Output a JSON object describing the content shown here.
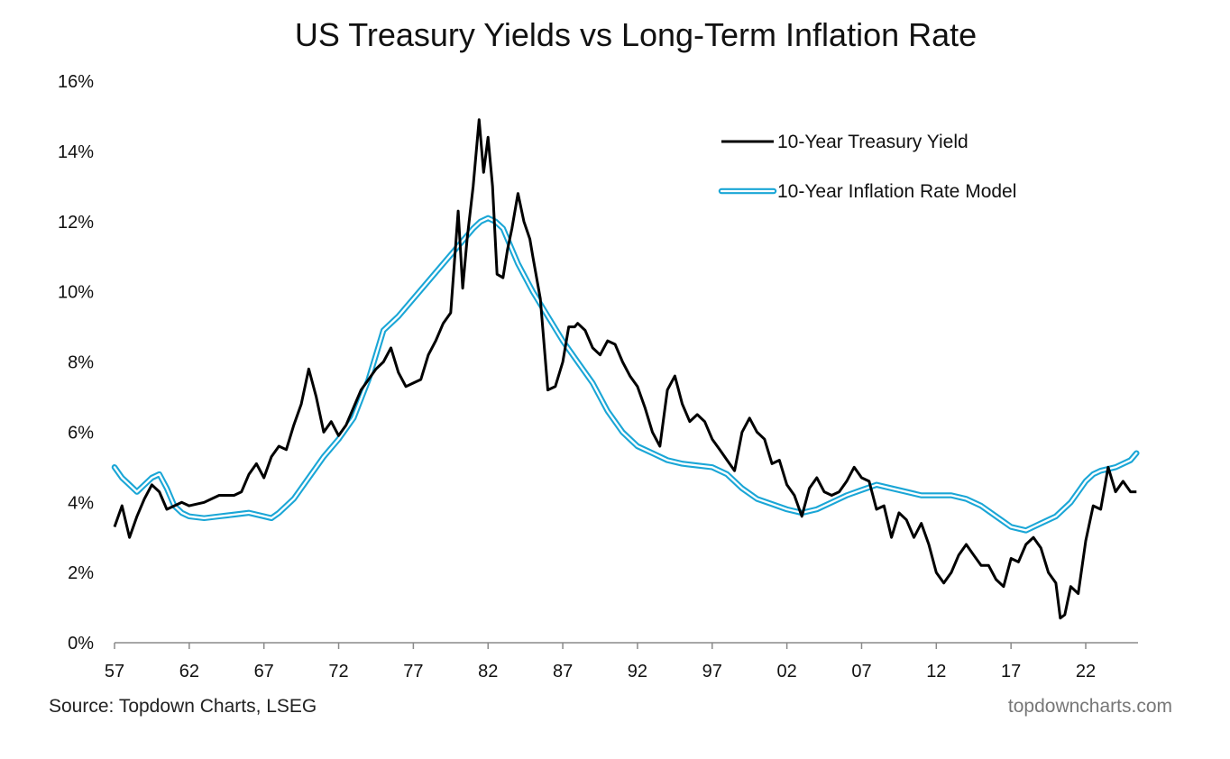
{
  "source_note": "Source: Topdown Charts, LSEG",
  "brand": "topdowncharts.com",
  "chart_data": {
    "type": "line",
    "title": "US Treasury Yields vs Long-Term Inflation Rate",
    "xlabel": "",
    "ylabel": "",
    "xlim": [
      1957,
      2025.5
    ],
    "ylim": [
      0,
      16
    ],
    "grid": false,
    "legend_position": "top-right",
    "x_ticks": [
      1957,
      1962,
      1967,
      1972,
      1977,
      1982,
      1987,
      1992,
      1997,
      2002,
      2007,
      2012,
      2017,
      2022
    ],
    "x_tick_labels": [
      "57",
      "62",
      "67",
      "72",
      "77",
      "82",
      "87",
      "92",
      "97",
      "02",
      "07",
      "12",
      "17",
      "22"
    ],
    "y_ticks": [
      0,
      2,
      4,
      6,
      8,
      10,
      12,
      14,
      16
    ],
    "y_tick_labels": [
      "0%",
      "2%",
      "4%",
      "6%",
      "8%",
      "10%",
      "12%",
      "14%",
      "16%"
    ],
    "series": [
      {
        "name": "10-Year Treasury Yield",
        "color": "#000000",
        "style": "solid",
        "x": [
          1957.0,
          1957.5,
          1958.0,
          1958.5,
          1959.0,
          1959.5,
          1960.0,
          1960.5,
          1961.0,
          1961.5,
          1962.0,
          1962.5,
          1963.0,
          1963.5,
          1964.0,
          1964.5,
          1965.0,
          1965.5,
          1966.0,
          1966.5,
          1967.0,
          1967.5,
          1968.0,
          1968.5,
          1969.0,
          1969.5,
          1970.0,
          1970.5,
          1971.0,
          1971.5,
          1972.0,
          1972.5,
          1973.0,
          1973.5,
          1974.0,
          1974.5,
          1975.0,
          1975.5,
          1976.0,
          1976.5,
          1977.0,
          1977.5,
          1978.0,
          1978.5,
          1979.0,
          1979.5,
          1980.0,
          1980.3,
          1980.6,
          1981.0,
          1981.4,
          1981.7,
          1982.0,
          1982.3,
          1982.6,
          1983.0,
          1983.3,
          1983.6,
          1984.0,
          1984.4,
          1984.8,
          1985.0,
          1985.5,
          1986.0,
          1986.5,
          1987.0,
          1987.4,
          1987.8,
          1988.0,
          1988.5,
          1989.0,
          1989.5,
          1990.0,
          1990.5,
          1991.0,
          1991.5,
          1992.0,
          1992.5,
          1993.0,
          1993.5,
          1994.0,
          1994.5,
          1995.0,
          1995.5,
          1996.0,
          1996.5,
          1997.0,
          1997.5,
          1998.0,
          1998.5,
          1999.0,
          1999.5,
          2000.0,
          2000.5,
          2001.0,
          2001.5,
          2002.0,
          2002.5,
          2003.0,
          2003.5,
          2004.0,
          2004.5,
          2005.0,
          2005.5,
          2006.0,
          2006.5,
          2007.0,
          2007.5,
          2008.0,
          2008.5,
          2009.0,
          2009.5,
          2010.0,
          2010.5,
          2011.0,
          2011.5,
          2012.0,
          2012.5,
          2013.0,
          2013.5,
          2014.0,
          2014.5,
          2015.0,
          2015.5,
          2016.0,
          2016.5,
          2017.0,
          2017.5,
          2018.0,
          2018.5,
          2019.0,
          2019.5,
          2020.0,
          2020.3,
          2020.6,
          2021.0,
          2021.5,
          2022.0,
          2022.5,
          2023.0,
          2023.5,
          2024.0,
          2024.5,
          2025.0,
          2025.4
        ],
        "y": [
          3.3,
          3.9,
          3.0,
          3.6,
          4.1,
          4.5,
          4.3,
          3.8,
          3.9,
          4.0,
          3.9,
          3.95,
          4.0,
          4.1,
          4.2,
          4.2,
          4.2,
          4.3,
          4.8,
          5.1,
          4.7,
          5.3,
          5.6,
          5.5,
          6.2,
          6.8,
          7.8,
          7.0,
          6.0,
          6.3,
          5.9,
          6.2,
          6.7,
          7.2,
          7.5,
          7.8,
          8.0,
          8.4,
          7.7,
          7.3,
          7.4,
          7.5,
          8.2,
          8.6,
          9.1,
          9.4,
          12.3,
          10.1,
          11.5,
          13.0,
          14.9,
          13.4,
          14.4,
          13.0,
          10.5,
          10.4,
          11.2,
          11.8,
          12.8,
          12.0,
          11.5,
          11.0,
          9.8,
          7.2,
          7.3,
          8.0,
          9.0,
          9.0,
          9.1,
          8.9,
          8.4,
          8.2,
          8.6,
          8.5,
          8.0,
          7.6,
          7.3,
          6.7,
          6.0,
          5.6,
          7.2,
          7.6,
          6.8,
          6.3,
          6.5,
          6.3,
          5.8,
          5.5,
          5.2,
          4.9,
          6.0,
          6.4,
          6.0,
          5.8,
          5.1,
          5.2,
          4.5,
          4.2,
          3.6,
          4.4,
          4.7,
          4.3,
          4.2,
          4.3,
          4.6,
          5.0,
          4.7,
          4.6,
          3.8,
          3.9,
          3.0,
          3.7,
          3.5,
          3.0,
          3.4,
          2.8,
          2.0,
          1.7,
          2.0,
          2.5,
          2.8,
          2.5,
          2.2,
          2.2,
          1.8,
          1.6,
          2.4,
          2.3,
          2.8,
          3.0,
          2.7,
          2.0,
          1.7,
          0.7,
          0.8,
          1.6,
          1.4,
          2.9,
          3.9,
          3.8,
          5.0,
          4.3,
          4.6,
          4.3,
          4.3
        ]
      },
      {
        "name": "10-Year Inflation Rate Model",
        "color": "#1aa6d6",
        "style": "double",
        "x": [
          1957.0,
          1957.5,
          1958.0,
          1958.5,
          1959.0,
          1959.5,
          1960.0,
          1960.5,
          1961.0,
          1961.5,
          1962.0,
          1963.0,
          1964.0,
          1965.0,
          1966.0,
          1967.0,
          1967.5,
          1968.0,
          1969.0,
          1970.0,
          1971.0,
          1972.0,
          1973.0,
          1974.0,
          1975.0,
          1976.0,
          1977.0,
          1978.0,
          1979.0,
          1980.0,
          1981.0,
          1981.5,
          1982.0,
          1982.5,
          1983.0,
          1983.5,
          1984.0,
          1985.0,
          1986.0,
          1987.0,
          1988.0,
          1989.0,
          1990.0,
          1991.0,
          1992.0,
          1993.0,
          1994.0,
          1995.0,
          1996.0,
          1997.0,
          1998.0,
          1999.0,
          2000.0,
          2001.0,
          2002.0,
          2003.0,
          2004.0,
          2005.0,
          2006.0,
          2007.0,
          2008.0,
          2009.0,
          2010.0,
          2011.0,
          2012.0,
          2013.0,
          2014.0,
          2015.0,
          2016.0,
          2017.0,
          2018.0,
          2019.0,
          2020.0,
          2021.0,
          2022.0,
          2022.5,
          2023.0,
          2024.0,
          2025.0,
          2025.4
        ],
        "y": [
          5.0,
          4.7,
          4.5,
          4.3,
          4.5,
          4.7,
          4.8,
          4.4,
          3.9,
          3.7,
          3.6,
          3.55,
          3.6,
          3.65,
          3.7,
          3.6,
          3.55,
          3.7,
          4.1,
          4.7,
          5.3,
          5.8,
          6.4,
          7.5,
          8.9,
          9.3,
          9.8,
          10.3,
          10.8,
          11.3,
          11.8,
          12.0,
          12.1,
          12.0,
          11.8,
          11.3,
          10.8,
          10.0,
          9.3,
          8.6,
          8.0,
          7.4,
          6.6,
          6.0,
          5.6,
          5.4,
          5.2,
          5.1,
          5.05,
          5.0,
          4.8,
          4.4,
          4.1,
          3.95,
          3.8,
          3.7,
          3.8,
          4.0,
          4.2,
          4.35,
          4.5,
          4.4,
          4.3,
          4.2,
          4.2,
          4.2,
          4.1,
          3.9,
          3.6,
          3.3,
          3.2,
          3.4,
          3.6,
          4.0,
          4.6,
          4.8,
          4.9,
          5.0,
          5.2,
          5.4
        ]
      }
    ]
  }
}
